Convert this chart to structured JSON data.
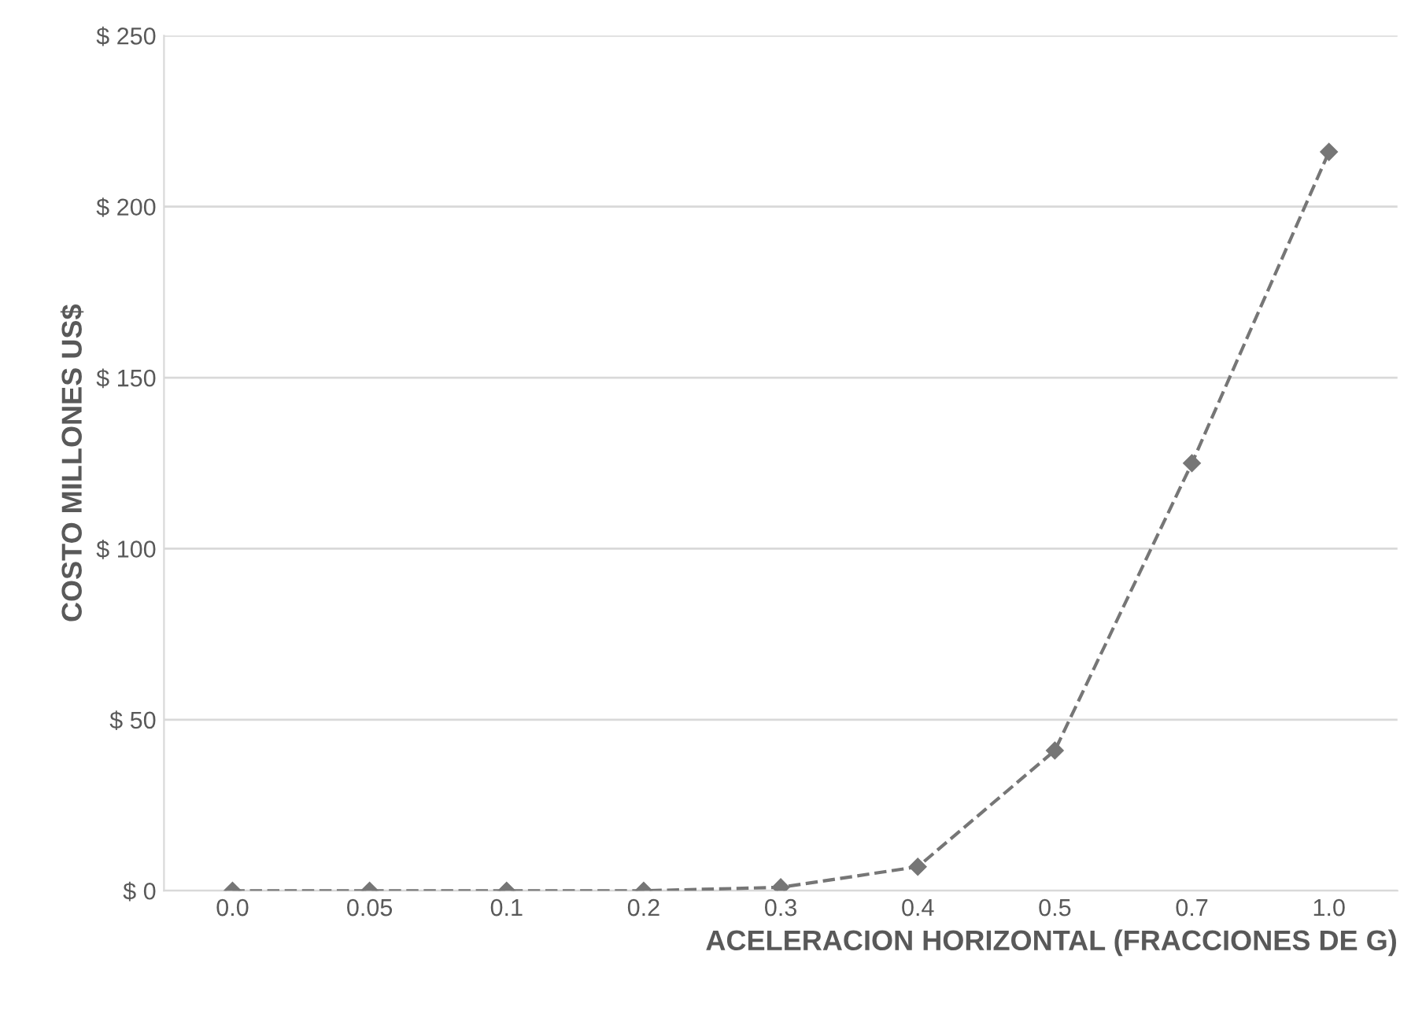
{
  "chart_data": {
    "type": "line",
    "xlabel": "ACELERACION HORIZONTAL (FRACCIONES DE G)",
    "ylabel": "COSTO MILLONES US$",
    "categories": [
      "0.0",
      "0.05",
      "0.1",
      "0.2",
      "0.3",
      "0.4",
      "0.5",
      "0.7",
      "1.0"
    ],
    "series": [
      {
        "color": "#767676",
        "values": [
          0,
          0,
          0,
          0,
          1,
          7,
          41,
          125,
          216
        ]
      }
    ],
    "ylim": [
      0,
      250
    ],
    "yticks": [
      {
        "value": 0,
        "label": "$ 0"
      },
      {
        "value": 50,
        "label": "$ 50"
      },
      {
        "value": 100,
        "label": "$ 100"
      },
      {
        "value": 150,
        "label": "$ 150"
      },
      {
        "value": 200,
        "label": "$ 200"
      },
      {
        "value": 250,
        "label": "$ 250"
      }
    ],
    "grid": "y",
    "marker": "diamond",
    "line_style": "dashed"
  }
}
